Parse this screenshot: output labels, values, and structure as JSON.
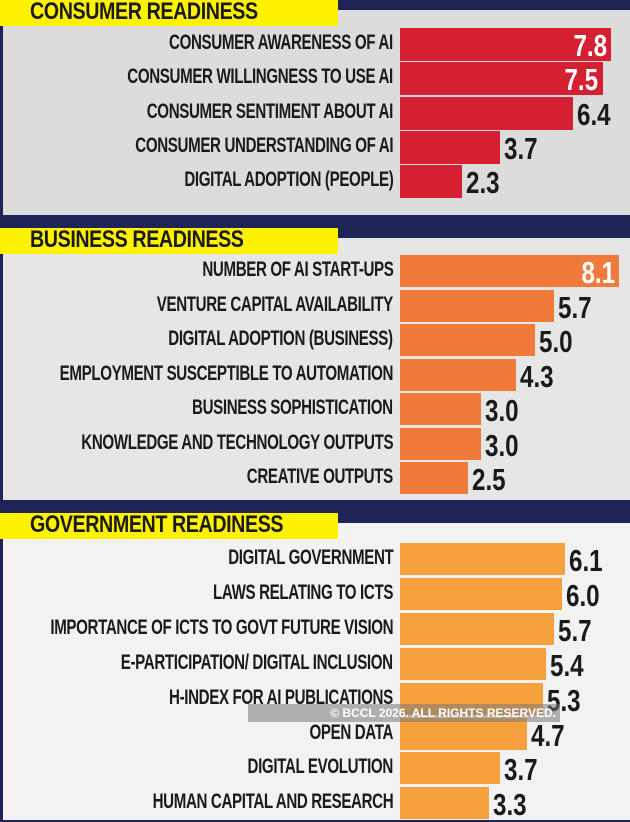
{
  "chart_data": {
    "type": "bar",
    "orientation": "horizontal",
    "xlim": [
      0,
      8.1
    ],
    "grid": false,
    "groups": [
      {
        "title": "CONSUMER READINESS",
        "color": "#d42030",
        "categories": [
          "CONSUMER AWARENESS OF AI",
          "CONSUMER WILLINGNESS TO USE AI",
          "CONSUMER SENTIMENT ABOUT AI",
          "CONSUMER UNDERSTANDING OF AI",
          "DIGITAL ADOPTION (PEOPLE)"
        ],
        "values": [
          7.8,
          7.5,
          6.4,
          3.7,
          2.3
        ]
      },
      {
        "title": "BUSINESS READINESS",
        "color": "#f07a3a",
        "categories": [
          "NUMBER OF AI START-UPS",
          "VENTURE CAPITAL AVAILABILITY",
          "DIGITAL ADOPTION (BUSINESS)",
          "EMPLOYMENT SUSCEPTIBLE TO AUTOMATION",
          "BUSINESS SOPHISTICATION",
          "KNOWLEDGE AND TECHNOLOGY OUTPUTS",
          "CREATIVE OUTPUTS"
        ],
        "values": [
          8.1,
          5.7,
          5.0,
          4.3,
          3.0,
          3.0,
          2.5
        ]
      },
      {
        "title": "GOVERNMENT READINESS",
        "color": "#f5a03c",
        "categories": [
          "DIGITAL GOVERNMENT",
          "LAWS RELATING TO ICTS",
          "IMPORTANCE OF ICTS TO GOVT FUTURE VISION",
          "E-PARTICIPATION/ DIGITAL INCLUSION",
          "H-INDEX FOR AI PUBLICATIONS",
          "OPEN DATA",
          "DIGITAL EVOLUTION",
          "HUMAN CAPITAL AND RESEARCH"
        ],
        "values": [
          6.1,
          6.0,
          5.7,
          5.4,
          5.3,
          4.7,
          3.7,
          3.3
        ]
      }
    ]
  },
  "colors": {
    "frame": "#1f2456",
    "header": "#fff200",
    "panel_bg": [
      "#dcdcdc",
      "#e6e6e6",
      "#f2f2f2"
    ]
  },
  "watermark": "© BCCL 2026. ALL RIGHTS RESERVED."
}
